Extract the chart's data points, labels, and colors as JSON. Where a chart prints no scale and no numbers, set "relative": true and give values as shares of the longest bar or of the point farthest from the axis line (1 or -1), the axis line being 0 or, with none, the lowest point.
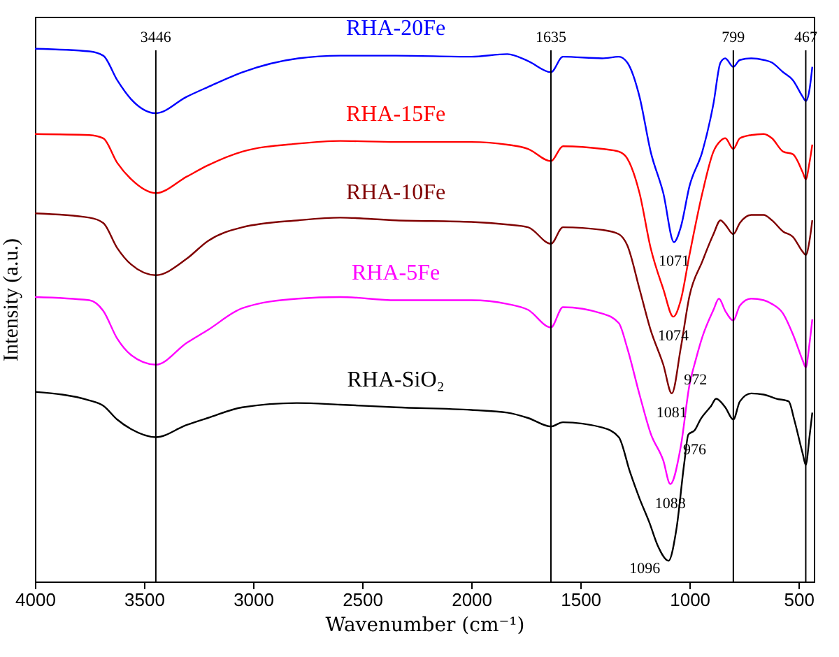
{
  "chart_data": {
    "type": "line",
    "relative": true,
    "xlabel": "Wavenumber (cm⁻¹)",
    "ylabel": "Intensity (a.u.)",
    "xlim": [
      4000,
      430
    ],
    "xticks": [
      4000,
      3500,
      3000,
      2500,
      2000,
      1500,
      1000,
      500
    ],
    "marker": "none",
    "line_style": "solid",
    "grid": false,
    "series": [
      {
        "name": "RHA-20Fe",
        "color": "#0000ff",
        "x": [
          4000,
          3751,
          3687,
          3623,
          3559,
          3446,
          3304,
          3208,
          3049,
          2793,
          2601,
          2346,
          2000,
          1835,
          1740,
          1635,
          1580,
          1400,
          1324,
          1285,
          1229,
          1178,
          1120,
          1071,
          1040,
          1000,
          941,
          890,
          858,
          836,
          799,
          769,
          717,
          660,
          622,
          571,
          526,
          481,
          467,
          450,
          437
        ],
        "values": [
          1.0,
          0.995,
          0.987,
          0.941,
          0.905,
          0.879,
          0.91,
          0.928,
          0.956,
          0.982,
          0.987,
          0.987,
          0.985,
          0.99,
          0.977,
          0.956,
          0.985,
          0.982,
          0.985,
          0.974,
          0.91,
          0.807,
          0.729,
          0.637,
          0.665,
          0.742,
          0.807,
          0.897,
          0.974,
          0.982,
          0.966,
          0.979,
          0.982,
          0.979,
          0.974,
          0.956,
          0.941,
          0.91,
          0.902,
          0.923,
          0.966
        ]
      },
      {
        "name": "RHA-15Fe",
        "color": "#ff0000",
        "x": [
          4000,
          3751,
          3687,
          3623,
          3559,
          3446,
          3304,
          3208,
          3049,
          2793,
          2601,
          2346,
          2000,
          1835,
          1740,
          1635,
          1580,
          1400,
          1324,
          1285,
          1229,
          1178,
          1120,
          1074,
          1040,
          1000,
          941,
          890,
          858,
          836,
          799,
          769,
          717,
          660,
          622,
          571,
          526,
          481,
          467,
          450,
          437
        ],
        "values": [
          0.84,
          0.838,
          0.832,
          0.786,
          0.755,
          0.729,
          0.76,
          0.781,
          0.807,
          0.822,
          0.827,
          0.825,
          0.825,
          0.82,
          0.812,
          0.789,
          0.817,
          0.812,
          0.807,
          0.794,
          0.729,
          0.626,
          0.549,
          0.497,
          0.528,
          0.613,
          0.729,
          0.807,
          0.827,
          0.832,
          0.812,
          0.832,
          0.838,
          0.84,
          0.832,
          0.807,
          0.802,
          0.768,
          0.755,
          0.786,
          0.82
        ]
      },
      {
        "name": "RHA-10Fe",
        "color": "#800000",
        "x": [
          4000,
          3751,
          3687,
          3623,
          3559,
          3446,
          3304,
          3208,
          3049,
          2793,
          2601,
          2346,
          2000,
          1835,
          1740,
          1635,
          1580,
          1400,
          1324,
          1285,
          1229,
          1178,
          1120,
          1081,
          1040,
          1000,
          941,
          890,
          858,
          836,
          799,
          769,
          717,
          660,
          622,
          571,
          526,
          481,
          467,
          450,
          437
        ],
        "values": [
          0.691,
          0.683,
          0.673,
          0.626,
          0.595,
          0.575,
          0.606,
          0.639,
          0.665,
          0.678,
          0.683,
          0.678,
          0.675,
          0.67,
          0.665,
          0.634,
          0.665,
          0.66,
          0.652,
          0.631,
          0.549,
          0.472,
          0.407,
          0.353,
          0.438,
          0.536,
          0.601,
          0.652,
          0.678,
          0.67,
          0.652,
          0.673,
          0.688,
          0.688,
          0.678,
          0.657,
          0.647,
          0.619,
          0.613,
          0.639,
          0.678
        ]
      },
      {
        "name": "RHA-5Fe",
        "color": "#ff00ff",
        "x": [
          4000,
          3751,
          3687,
          3623,
          3559,
          3446,
          3304,
          3208,
          3049,
          2793,
          2601,
          2346,
          2000,
          1835,
          1740,
          1635,
          1580,
          1400,
          1324,
          1285,
          1229,
          1178,
          1120,
          1088,
          1040,
          1000,
          972,
          941,
          890,
          865,
          836,
          799,
          769,
          717,
          660,
          622,
          571,
          526,
          481,
          467,
          450,
          437
        ],
        "values": [
          0.534,
          0.528,
          0.508,
          0.456,
          0.425,
          0.407,
          0.448,
          0.472,
          0.513,
          0.531,
          0.534,
          0.528,
          0.528,
          0.521,
          0.51,
          0.477,
          0.515,
          0.503,
          0.485,
          0.438,
          0.351,
          0.278,
          0.227,
          0.183,
          0.253,
          0.369,
          0.415,
          0.459,
          0.51,
          0.531,
          0.508,
          0.49,
          0.518,
          0.531,
          0.528,
          0.521,
          0.503,
          0.464,
          0.415,
          0.402,
          0.446,
          0.492
        ]
      },
      {
        "name": "RHA-SiO₂",
        "color": "#000000",
        "x": [
          4000,
          3751,
          3687,
          3623,
          3559,
          3446,
          3304,
          3208,
          3049,
          2800,
          2601,
          2346,
          2000,
          1835,
          1740,
          1635,
          1580,
          1400,
          1324,
          1273,
          1230,
          1184,
          1145,
          1096,
          1060,
          1024,
          1005,
          976,
          950,
          900,
          878,
          836,
          799,
          769,
          717,
          660,
          600,
          545,
          520,
          481,
          467,
          450,
          437
        ],
        "values": [
          0.356,
          0.34,
          0.33,
          0.304,
          0.286,
          0.271,
          0.294,
          0.307,
          0.327,
          0.335,
          0.332,
          0.327,
          0.322,
          0.317,
          0.307,
          0.291,
          0.299,
          0.289,
          0.271,
          0.206,
          0.157,
          0.111,
          0.067,
          0.039,
          0.098,
          0.222,
          0.276,
          0.284,
          0.304,
          0.33,
          0.343,
          0.327,
          0.304,
          0.338,
          0.353,
          0.351,
          0.343,
          0.338,
          0.304,
          0.24,
          0.219,
          0.271,
          0.317
        ]
      }
    ],
    "ref_lines": [
      {
        "axis": "x",
        "value": 3446,
        "label": "3446",
        "color": "#000000"
      },
      {
        "axis": "x",
        "value": 1635,
        "label": "1635",
        "color": "#000000"
      },
      {
        "axis": "x",
        "value": 799,
        "label": "799",
        "color": "#000000"
      },
      {
        "axis": "x",
        "value": 467,
        "label": "467",
        "color": "#000000"
      }
    ],
    "annotations": [
      {
        "text": "1071",
        "x": 1071,
        "y": 0.637
      },
      {
        "text": "1074",
        "x": 1074,
        "y": 0.497
      },
      {
        "text": "1081",
        "x": 1081,
        "y": 0.353
      },
      {
        "text": "1088",
        "x": 1088,
        "y": 0.183
      },
      {
        "text": "1096",
        "x": 1096,
        "y": 0.039
      },
      {
        "text": "972",
        "x": 972,
        "y": 0.415
      },
      {
        "text": "976",
        "x": 976,
        "y": 0.284
      }
    ]
  }
}
